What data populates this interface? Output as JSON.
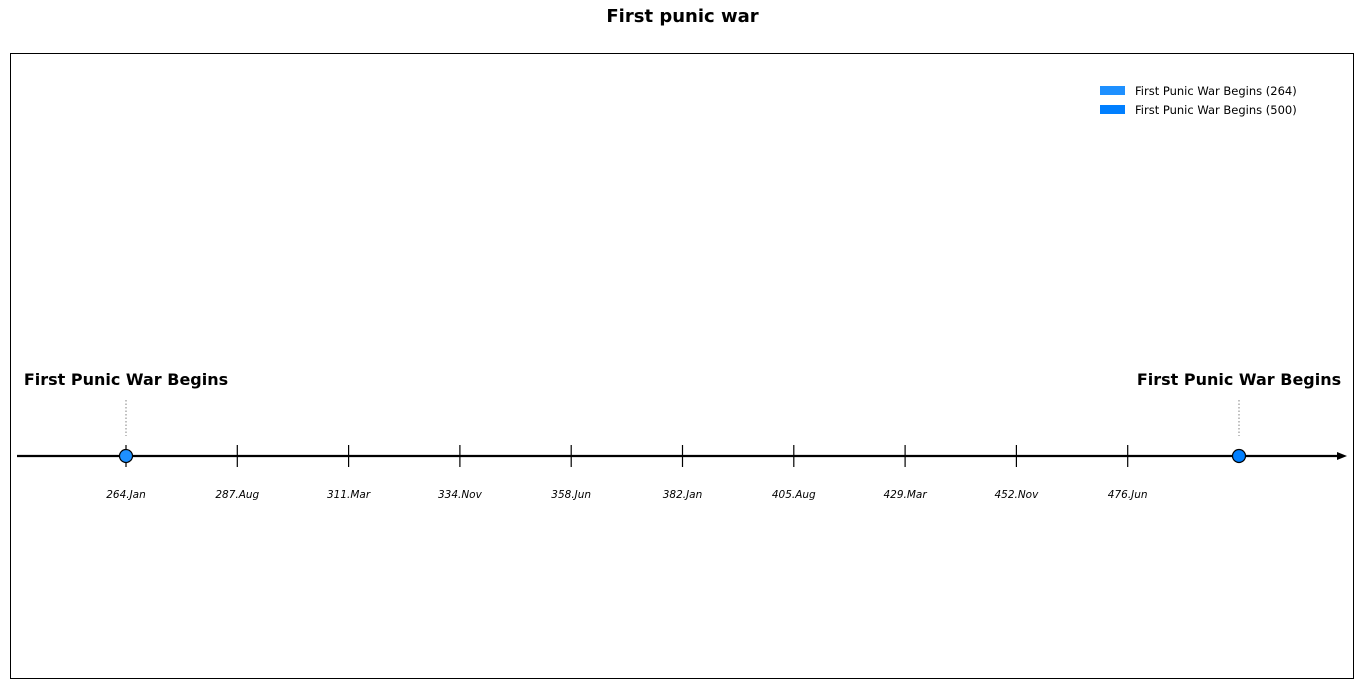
{
  "chart_data": {
    "type": "timeline",
    "title": "First punic war",
    "tick_labels": [
      "264.Jan",
      "287.Aug",
      "311.Mar",
      "334.Nov",
      "358.Jun",
      "382.Jan",
      "405.Aug",
      "429.Mar",
      "452.Nov",
      "476.Jun"
    ],
    "x_range": [
      264,
      500
    ],
    "events": [
      {
        "label": "First Punic War Begins",
        "year": 264,
        "color": "#1E90FF"
      },
      {
        "label": "First Punic War Begins",
        "year": 500,
        "color": "#007FFF"
      }
    ],
    "legend": {
      "placement": "top-right",
      "entries": [
        {
          "label": "First Punic War Begins (264)",
          "color": "#1E90FF"
        },
        {
          "label": "First Punic War Begins (500)",
          "color": "#007FFF"
        }
      ]
    },
    "grid": false
  }
}
